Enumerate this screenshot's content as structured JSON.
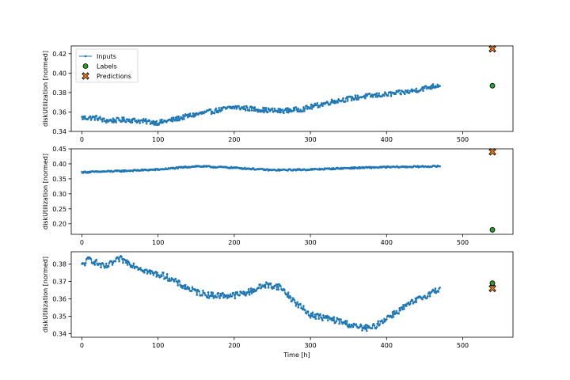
{
  "colors": {
    "inputs": "#1f77b4",
    "labels": "#2ca02c",
    "predictions": "#ff7f0e",
    "axes": "#000000",
    "background": "#ffffff"
  },
  "figure": {
    "xlabel": "Time [h]"
  },
  "chart_data": [
    {
      "type": "line",
      "ylabel": "diskUtilization [normed]",
      "xlim": [
        -14,
        566
      ],
      "ylim": [
        0.34,
        0.428
      ],
      "xticks": [
        0,
        100,
        200,
        300,
        400,
        500
      ],
      "yticks": [
        0.34,
        0.36,
        0.38,
        0.4,
        0.42
      ],
      "ytick_labels": [
        "0.34",
        "0.36",
        "0.38",
        "0.40",
        "0.42"
      ],
      "legend": {
        "location": "upper-left",
        "entries": [
          "Inputs",
          "Labels",
          "Predictions"
        ]
      },
      "grid": false,
      "series": [
        {
          "name": "Inputs",
          "marker": "point",
          "x_start": 0,
          "x_end": 470,
          "anchors_x": [
            0,
            20,
            30,
            60,
            100,
            120,
            140,
            160,
            200,
            240,
            260,
            290,
            330,
            370,
            400,
            430,
            470
          ],
          "anchors_y": [
            0.354,
            0.354,
            0.351,
            0.352,
            0.349,
            0.352,
            0.356,
            0.359,
            0.365,
            0.362,
            0.361,
            0.363,
            0.371,
            0.376,
            0.378,
            0.381,
            0.388
          ],
          "noise_amplitude": 0.0025
        },
        {
          "name": "Labels",
          "marker": "circle",
          "x": [
            539
          ],
          "y": [
            0.387
          ]
        },
        {
          "name": "Predictions",
          "marker": "x",
          "x": [
            539
          ],
          "y": [
            0.425
          ]
        }
      ]
    },
    {
      "type": "line",
      "ylabel": "diskUtilization [normed]",
      "xlim": [
        -14,
        566
      ],
      "ylim": [
        0.165,
        0.45
      ],
      "xticks": [
        0,
        100,
        200,
        300,
        400,
        500
      ],
      "yticks": [
        0.2,
        0.25,
        0.3,
        0.35,
        0.4,
        0.45
      ],
      "ytick_labels": [
        "0.20",
        "0.25",
        "0.30",
        "0.35",
        "0.40",
        "0.45"
      ],
      "grid": false,
      "series": [
        {
          "name": "Inputs",
          "marker": "point",
          "x_start": 0,
          "x_end": 470,
          "anchors_x": [
            0,
            50,
            100,
            150,
            200,
            250,
            300,
            350,
            400,
            450,
            470
          ],
          "anchors_y": [
            0.372,
            0.376,
            0.381,
            0.392,
            0.387,
            0.379,
            0.381,
            0.386,
            0.389,
            0.391,
            0.392
          ],
          "noise_amplitude": 0.0025
        },
        {
          "name": "Labels",
          "marker": "circle",
          "x": [
            539
          ],
          "y": [
            0.18
          ]
        },
        {
          "name": "Predictions",
          "marker": "x",
          "x": [
            539
          ],
          "y": [
            0.44
          ]
        }
      ]
    },
    {
      "type": "line",
      "ylabel": "diskUtilization [normed]",
      "xlim": [
        -14,
        566
      ],
      "ylim": [
        0.338,
        0.387
      ],
      "xticks": [
        0,
        100,
        200,
        300,
        400,
        500
      ],
      "yticks": [
        0.34,
        0.35,
        0.36,
        0.37,
        0.38
      ],
      "ytick_labels": [
        "0.34",
        "0.35",
        "0.36",
        "0.37",
        "0.38"
      ],
      "xlabel": "Time [h]",
      "grid": false,
      "series": [
        {
          "name": "Inputs",
          "marker": "point",
          "x_start": 0,
          "x_end": 470,
          "anchors_x": [
            0,
            10,
            30,
            50,
            70,
            90,
            110,
            130,
            150,
            170,
            200,
            220,
            240,
            260,
            280,
            300,
            320,
            340,
            360,
            380,
            400,
            430,
            470
          ],
          "anchors_y": [
            0.379,
            0.383,
            0.378,
            0.383,
            0.379,
            0.375,
            0.373,
            0.368,
            0.364,
            0.362,
            0.362,
            0.364,
            0.368,
            0.367,
            0.358,
            0.351,
            0.349,
            0.347,
            0.344,
            0.343,
            0.349,
            0.357,
            0.366
          ],
          "noise_amplitude": 0.0018
        },
        {
          "name": "Labels",
          "marker": "circle",
          "x": [
            539
          ],
          "y": [
            0.369
          ]
        },
        {
          "name": "Predictions",
          "marker": "x",
          "x": [
            539
          ],
          "y": [
            0.366
          ]
        }
      ]
    }
  ]
}
